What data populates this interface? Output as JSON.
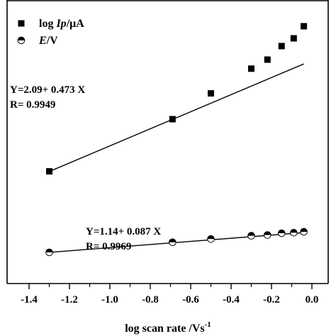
{
  "chart_data": {
    "type": "scatter",
    "xlabel": "log scan rate /Vs",
    "xlabel_superscript": "-1",
    "xlim": [
      -1.4,
      0.0
    ],
    "x_ticks": [
      "-1.4",
      "-1.2",
      "-1.0",
      "-0.8",
      "-0.6",
      "-0.4",
      "-0.2",
      "0.0"
    ],
    "x_tick_values": [
      -1.4,
      -1.2,
      -1.0,
      -0.8,
      -0.6,
      -0.4,
      -0.2,
      0.0
    ],
    "legend_placement": "top-left",
    "grid": false,
    "series": [
      {
        "name_prefix": "log ",
        "name_italic": "Ip",
        "name_suffix": "/μA",
        "marker": "filled-square",
        "x": [
          -1.3,
          -0.69,
          -0.5,
          -0.3,
          -0.22,
          -0.15,
          -0.09,
          -0.04
        ],
        "y": [
          1.476,
          1.765,
          1.908,
          2.045,
          2.095,
          2.17,
          2.213,
          2.28
        ],
        "fit": {
          "slope": 0.473,
          "intercept": 2.09,
          "x_range": [
            -1.3,
            -0.04
          ]
        }
      },
      {
        "name_prefix": "",
        "name_italic": "E",
        "name_suffix": "/V",
        "marker": "half-filled-circle",
        "x": [
          -1.3,
          -0.69,
          -0.5,
          -0.3,
          -0.22,
          -0.15,
          -0.09,
          -0.04
        ],
        "y": [
          1.027,
          1.083,
          1.101,
          1.119,
          1.123,
          1.133,
          1.136,
          1.141
        ],
        "fit": {
          "slope": 0.087,
          "intercept": 1.14,
          "x_range": [
            -1.3,
            -0.04
          ]
        }
      }
    ],
    "annotations": [
      {
        "series": 0,
        "line1": "Y=2.09+ 0.473 X",
        "line2": "R= 0.9949"
      },
      {
        "series": 1,
        "line1": "Y=1.14+ 0.087 X",
        "line2": "R= 0.9969"
      }
    ]
  }
}
